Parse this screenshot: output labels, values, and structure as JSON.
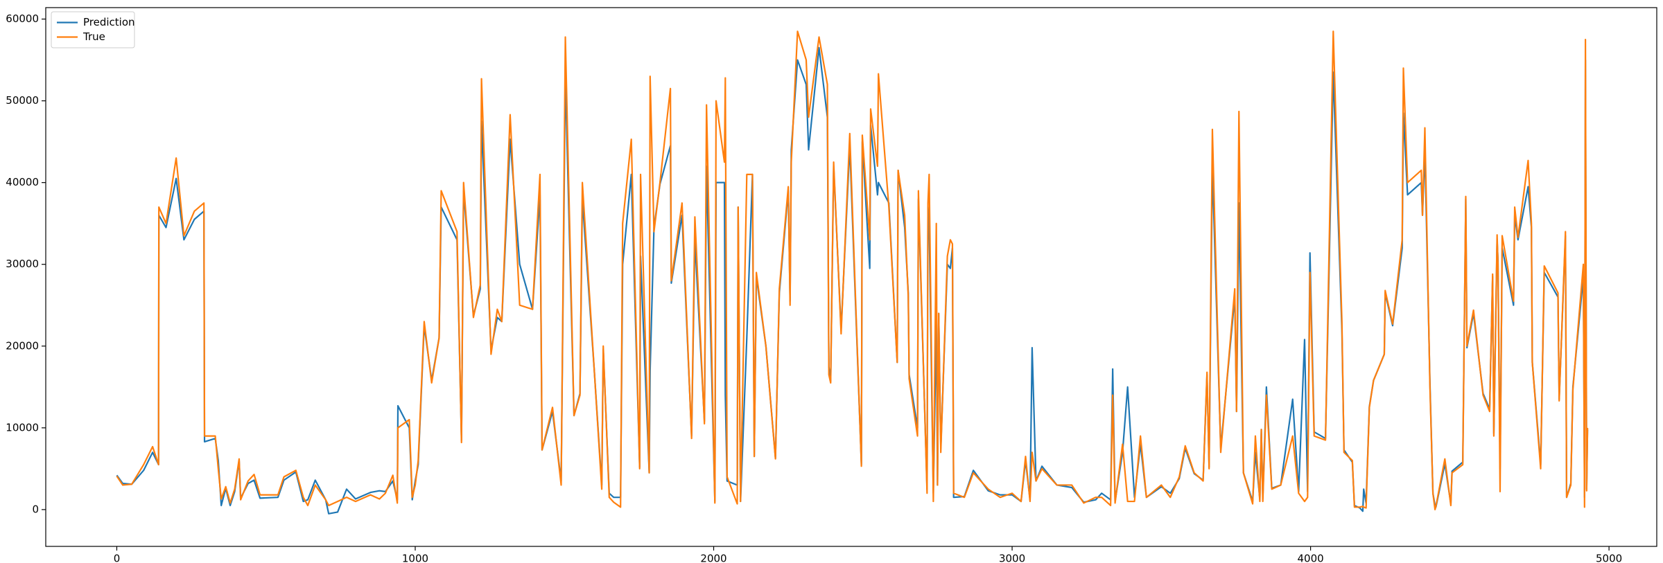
{
  "chart_data": {
    "type": "line",
    "x": [
      0,
      20,
      50,
      90,
      120,
      140,
      141,
      165,
      199,
      225,
      260,
      292,
      294,
      330,
      340,
      350,
      365,
      380,
      395,
      410,
      415,
      440,
      460,
      480,
      540,
      560,
      600,
      625,
      640,
      665,
      700,
      710,
      740,
      770,
      800,
      850,
      880,
      900,
      925,
      940,
      942,
      980,
      990,
      1000,
      1010,
      1030,
      1055,
      1080,
      1087,
      1140,
      1155,
      1162,
      1195,
      1218,
      1222,
      1254,
      1275,
      1290,
      1318,
      1350,
      1393,
      1418,
      1425,
      1460,
      1489,
      1503,
      1532,
      1552,
      1560,
      1600,
      1625,
      1630,
      1650,
      1665,
      1688,
      1695,
      1724,
      1752,
      1755,
      1784,
      1787,
      1800,
      1820,
      1855,
      1858,
      1894,
      1926,
      1937,
      1969,
      1976,
      2004,
      2008,
      2036,
      2039,
      2045,
      2079,
      2082,
      2090,
      2111,
      2130,
      2136,
      2143,
      2175,
      2207,
      2220,
      2250,
      2256,
      2260,
      2281,
      2310,
      2318,
      2353,
      2381,
      2386,
      2392,
      2402,
      2427,
      2456,
      2495,
      2498,
      2523,
      2526,
      2549,
      2552,
      2587,
      2615,
      2618,
      2640,
      2652,
      2655,
      2683,
      2686,
      2715,
      2718,
      2722,
      2736,
      2746,
      2750,
      2754,
      2761,
      2783,
      2793,
      2800,
      2804,
      2840,
      2870,
      2920,
      2960,
      3000,
      3030,
      3045,
      3060,
      3067,
      3080,
      3100,
      3150,
      3200,
      3240,
      3280,
      3300,
      3330,
      3337,
      3345,
      3370,
      3387,
      3410,
      3430,
      3450,
      3500,
      3530,
      3560,
      3580,
      3610,
      3640,
      3653,
      3660,
      3671,
      3699,
      3746,
      3752,
      3760,
      3775,
      3806,
      3815,
      3830,
      3835,
      3840,
      3852,
      3870,
      3900,
      3940,
      3960,
      3980,
      3990,
      3998,
      4012,
      4050,
      4076,
      4105,
      4112,
      4140,
      4147,
      4165,
      4175,
      4178,
      4186,
      4197,
      4211,
      4247,
      4250,
      4275,
      4307,
      4311,
      4325,
      4371,
      4375,
      4383,
      4400,
      4410,
      4417,
      4420,
      4450,
      4470,
      4474,
      4510,
      4520,
      4524,
      4546,
      4578,
      4600,
      4610,
      4614,
      4625,
      4628,
      4635,
      4642,
      4680,
      4684,
      4695,
      4729,
      4740,
      4743,
      4771,
      4783,
      4829,
      4833,
      4854,
      4858,
      4872,
      4879,
      4914,
      4918,
      4921,
      4925,
      4928
    ],
    "series": [
      {
        "name": "Prediction",
        "color": "#1f77b4",
        "values": [
          4200,
          3200,
          3100,
          4800,
          7000,
          5500,
          36000,
          34500,
          40500,
          33000,
          35500,
          36500,
          8300,
          8700,
          6000,
          500,
          2600,
          500,
          2200,
          6000,
          1400,
          3200,
          3600,
          1400,
          1500,
          3600,
          4600,
          1000,
          1200,
          3600,
          1200,
          -500,
          -300,
          2500,
          1300,
          2100,
          2300,
          2200,
          3500,
          1200,
          12700,
          10000,
          1200,
          3500,
          5500,
          22500,
          15800,
          21000,
          37000,
          33000,
          8500,
          39000,
          23700,
          27000,
          47500,
          19500,
          23500,
          23000,
          45300,
          30000,
          24500,
          38500,
          7300,
          12000,
          3500,
          53200,
          11500,
          14200,
          38000,
          17000,
          3000,
          19600,
          2000,
          1500,
          1500,
          30000,
          41000,
          5200,
          31000,
          4500,
          17000,
          34500,
          39800,
          44500,
          27700,
          36000,
          9000,
          33000,
          10800,
          42000,
          1000,
          40000,
          40000,
          14000,
          3500,
          3000,
          37000,
          1000,
          21000,
          41000,
          6500,
          28500,
          20000,
          6300,
          26500,
          39000,
          25500,
          44000,
          55000,
          52000,
          44000,
          56500,
          48000,
          17500,
          15700,
          42000,
          22000,
          44500,
          5500,
          45000,
          29500,
          47000,
          38500,
          40000,
          37500,
          18000,
          41500,
          34500,
          26500,
          16500,
          10000,
          38000,
          2500,
          37000,
          35000,
          2000,
          23000,
          3000,
          24000,
          7500,
          30000,
          29500,
          32000,
          1500,
          1600,
          4800,
          2300,
          1800,
          1800,
          1000,
          6000,
          1200,
          19800,
          3500,
          5300,
          3000,
          2700,
          900,
          1200,
          2000,
          1200,
          17200,
          1000,
          7000,
          15000,
          1500,
          8000,
          1500,
          2800,
          2000,
          3800,
          7500,
          4400,
          3600,
          16500,
          5200,
          42000,
          7500,
          26000,
          12000,
          37500,
          4500,
          1000,
          7000,
          1300,
          9800,
          1400,
          15000,
          2600,
          3000,
          13500,
          2200,
          20800,
          2200,
          31400,
          9500,
          8700,
          53500,
          22000,
          7300,
          5800,
          500,
          200,
          -200,
          2500,
          800,
          12600,
          15800,
          19000,
          26500,
          22500,
          32000,
          48500,
          38500,
          40000,
          36000,
          44000,
          15500,
          2000,
          500,
          300,
          5600,
          700,
          4700,
          5800,
          38000,
          19800,
          24000,
          14200,
          12300,
          28500,
          9300,
          33000,
          30500,
          5000,
          32000,
          25000,
          36000,
          33000,
          39500,
          34500,
          18000,
          5500,
          29000,
          26000,
          13500,
          33500,
          1500,
          3200,
          15000,
          28500,
          1500,
          55000,
          2500,
          9800
        ]
      },
      {
        "name": "True",
        "color": "#ff7f0e",
        "values": [
          4100,
          3000,
          3100,
          5500,
          7700,
          5500,
          37000,
          35000,
          43000,
          33500,
          36500,
          37500,
          9000,
          9000,
          5000,
          1300,
          2800,
          800,
          2500,
          6200,
          1200,
          3500,
          4300,
          1800,
          1800,
          4000,
          4800,
          1500,
          500,
          3000,
          1200,
          500,
          1000,
          1500,
          1000,
          1800,
          1300,
          2000,
          4200,
          800,
          10000,
          11000,
          1500,
          3000,
          6000,
          23000,
          15500,
          21000,
          39000,
          34000,
          8200,
          40000,
          23500,
          27500,
          52700,
          19000,
          24500,
          23000,
          48300,
          25000,
          24500,
          41000,
          7300,
          12500,
          3000,
          57800,
          11500,
          14000,
          40000,
          17000,
          2500,
          20000,
          1500,
          900,
          300,
          35000,
          45300,
          5000,
          41000,
          4500,
          53000,
          34000,
          40000,
          51500,
          28000,
          37500,
          8700,
          35800,
          10500,
          49500,
          800,
          50000,
          42500,
          52800,
          4000,
          700,
          37000,
          1000,
          41000,
          41000,
          6500,
          29000,
          20000,
          6200,
          27000,
          39500,
          25000,
          42500,
          58500,
          55000,
          48000,
          57800,
          52000,
          16500,
          15500,
          42500,
          21500,
          46000,
          5300,
          45800,
          33000,
          49000,
          42000,
          53300,
          37000,
          18000,
          41500,
          36000,
          26000,
          16000,
          9000,
          39000,
          2000,
          37500,
          41000,
          1000,
          35000,
          3000,
          24000,
          7000,
          31000,
          33000,
          32500,
          2000,
          1500,
          4500,
          2500,
          1500,
          2000,
          1000,
          6500,
          1000,
          7000,
          3500,
          5000,
          3000,
          3000,
          800,
          1500,
          1500,
          500,
          14000,
          800,
          8000,
          1000,
          1000,
          9000,
          1500,
          3000,
          1500,
          4000,
          7800,
          4500,
          3500,
          16800,
          5000,
          46500,
          7000,
          27000,
          12000,
          48700,
          4500,
          700,
          9000,
          1000,
          9800,
          1000,
          14000,
          2500,
          3000,
          9000,
          2000,
          1000,
          1500,
          29000,
          9000,
          8500,
          58500,
          23000,
          7000,
          6000,
          300,
          300,
          400,
          300,
          200,
          12500,
          15800,
          19000,
          26800,
          22700,
          33000,
          54000,
          40000,
          41500,
          36000,
          46700,
          15000,
          2000,
          0,
          400,
          6200,
          500,
          4500,
          5500,
          38300,
          20000,
          24400,
          14000,
          12000,
          28800,
          9000,
          33600,
          30000,
          2200,
          33500,
          25500,
          37000,
          33300,
          42700,
          35000,
          18000,
          5000,
          29800,
          26500,
          13300,
          34000,
          1500,
          3000,
          14700,
          30000,
          300,
          57500,
          2300,
          10000
        ]
      }
    ],
    "xlim": [
      -238,
      5160
    ],
    "ylim": [
      -4500,
      61400
    ],
    "xticks": [
      0,
      1000,
      2000,
      3000,
      4000,
      5000
    ],
    "yticks": [
      0,
      10000,
      20000,
      30000,
      40000,
      50000,
      60000
    ],
    "grid": false,
    "legend": "upper left"
  }
}
